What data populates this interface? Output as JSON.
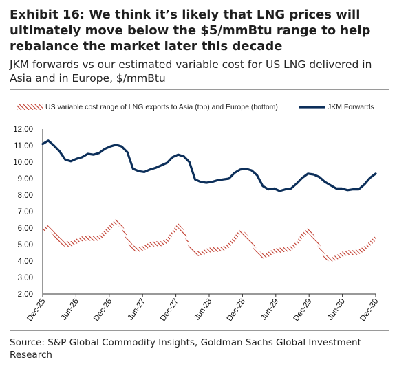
{
  "header": {
    "title": "Exhibit 16: We think it’s likely that LNG prices will ultimately move below the $5/mmBtu range to help rebalance the market later this decade",
    "subtitle": "JKM forwards vs our estimated variable cost for US LNG delivered in Asia and in Europe, $/mmBtu"
  },
  "footer": {
    "source": "Source: S&P Global Commodity Insights, Goldman Sachs Global Investment Research"
  },
  "colors": {
    "jkm": "#0c2f5a",
    "band": "#c0392b",
    "axis": "#333333"
  },
  "chart_data": {
    "type": "line",
    "legend_placement": "top",
    "grid": false,
    "ylim": [
      2.0,
      12.0
    ],
    "yticks": [
      "12.00",
      "11.00",
      "10.00",
      "9.00",
      "8.00",
      "7.00",
      "6.00",
      "5.00",
      "4.00",
      "3.00",
      "2.00"
    ],
    "xticks": [
      "Dec-25",
      "Jun-26",
      "Dec-26",
      "Jun-27",
      "Dec-27",
      "Jun-28",
      "Dec-28",
      "Jun-29",
      "Dec-29",
      "Jun-30",
      "Dec-30"
    ],
    "x_start": "Dec-25",
    "x_end": "Dec-30",
    "jkm": {
      "name": "JKM Forwards",
      "values": [
        11.1,
        11.3,
        11.0,
        10.65,
        10.15,
        10.05,
        10.2,
        10.3,
        10.5,
        10.45,
        10.55,
        10.8,
        10.95,
        11.05,
        10.95,
        10.6,
        9.6,
        9.45,
        9.4,
        9.55,
        9.65,
        9.8,
        9.95,
        10.3,
        10.45,
        10.35,
        10.0,
        8.95,
        8.8,
        8.75,
        8.8,
        8.9,
        8.95,
        9.0,
        9.35,
        9.55,
        9.6,
        9.5,
        9.2,
        8.55,
        8.35,
        8.4,
        8.25,
        8.35,
        8.4,
        8.7,
        9.05,
        9.3,
        9.25,
        9.1,
        8.8,
        8.6,
        8.4,
        8.4,
        8.3,
        8.35,
        8.35,
        8.65,
        9.05,
        9.3
      ]
    },
    "band": {
      "name": "US variable cost range of LNG exports to Asia (top) and Europe (bottom)",
      "top": [
        6.0,
        6.25,
        5.8,
        5.45,
        5.2,
        5.2,
        5.35,
        5.5,
        5.55,
        5.5,
        5.55,
        5.85,
        6.2,
        6.55,
        6.3,
        5.5,
        4.95,
        4.85,
        4.95,
        5.15,
        5.2,
        5.2,
        5.35,
        5.85,
        6.3,
        5.9,
        5.05,
        4.6,
        4.6,
        4.75,
        4.85,
        4.85,
        4.9,
        5.1,
        5.5,
        5.95,
        5.7,
        5.25,
        4.7,
        4.45,
        4.55,
        4.75,
        4.8,
        4.85,
        4.9,
        5.2,
        5.7,
        6.0,
        5.6,
        5.05,
        4.4,
        4.2,
        4.35,
        4.55,
        4.65,
        4.65,
        4.7,
        4.9,
        5.2,
        5.55
      ],
      "bottom": [
        5.7,
        5.95,
        5.5,
        5.1,
        4.85,
        4.85,
        5.05,
        5.2,
        5.25,
        5.2,
        5.25,
        5.5,
        5.9,
        6.25,
        5.95,
        5.15,
        4.6,
        4.55,
        4.65,
        4.85,
        4.9,
        4.9,
        5.05,
        5.55,
        6.0,
        5.6,
        4.75,
        4.3,
        4.3,
        4.45,
        4.55,
        4.55,
        4.6,
        4.8,
        5.2,
        5.65,
        5.4,
        4.95,
        4.4,
        4.15,
        4.25,
        4.45,
        4.5,
        4.55,
        4.6,
        4.9,
        5.4,
        5.7,
        5.3,
        4.75,
        4.1,
        3.95,
        4.05,
        4.25,
        4.35,
        4.35,
        4.4,
        4.6,
        4.9,
        5.25
      ]
    }
  }
}
